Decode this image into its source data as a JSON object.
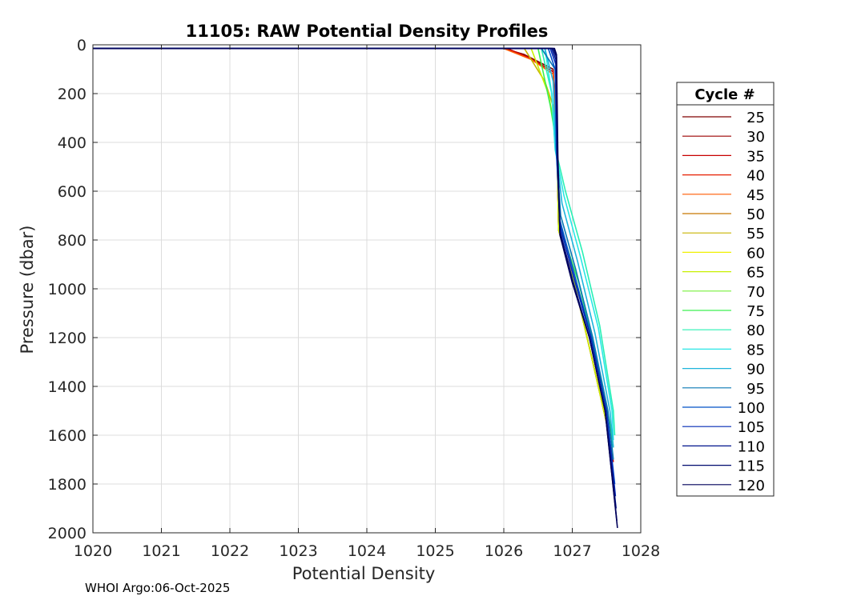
{
  "footer": "WHOI Argo:06-Oct-2025",
  "chart_data": {
    "type": "line",
    "title": "11105: RAW Potential Density Profiles",
    "xlabel": "Potential Density",
    "ylabel": "Pressure (dbar)",
    "xlim": [
      1020,
      1028
    ],
    "ylim": [
      0,
      2000
    ],
    "y_reversed": true,
    "grid": true,
    "xticks": [
      "1020",
      "1021",
      "1022",
      "1023",
      "1024",
      "1025",
      "1026",
      "1027",
      "1028"
    ],
    "yticks": [
      "0",
      "200",
      "400",
      "600",
      "800",
      "1000",
      "1200",
      "1400",
      "1600",
      "1800",
      "2000"
    ],
    "legend": {
      "title": "Cycle #",
      "placement": "outside-right",
      "entries": [
        {
          "label": "25",
          "color": "#800000"
        },
        {
          "label": "30",
          "color": "#9b0000"
        },
        {
          "label": "35",
          "color": "#c80000"
        },
        {
          "label": "40",
          "color": "#e61e00"
        },
        {
          "label": "45",
          "color": "#ff5a00"
        },
        {
          "label": "50",
          "color": "#c87800"
        },
        {
          "label": "55",
          "color": "#c8b400"
        },
        {
          "label": "60",
          "color": "#f0f000"
        },
        {
          "label": "65",
          "color": "#c8f000"
        },
        {
          "label": "70",
          "color": "#78f03c"
        },
        {
          "label": "75",
          "color": "#3cf050"
        },
        {
          "label": "80",
          "color": "#28f0b4"
        },
        {
          "label": "85",
          "color": "#28e6e6"
        },
        {
          "label": "90",
          "color": "#1eb4dc"
        },
        {
          "label": "95",
          "color": "#0a78b4"
        },
        {
          "label": "100",
          "color": "#0050c8"
        },
        {
          "label": "105",
          "color": "#0028b4"
        },
        {
          "label": "110",
          "color": "#00148c"
        },
        {
          "label": "115",
          "color": "#000a6e"
        },
        {
          "label": "120",
          "color": "#00005a"
        }
      ]
    },
    "series": [
      {
        "cycle": 25,
        "color": "#800000",
        "x": [
          1020.0,
          1026.0,
          1026.3,
          1026.72,
          1026.78,
          1026.8,
          1027.05,
          1027.3,
          1027.5,
          1027.58
        ],
        "y": [
          15,
          15,
          40,
          100,
          450,
          750,
          1000,
          1300,
          1550,
          1700
        ]
      },
      {
        "cycle": 35,
        "color": "#c80000",
        "x": [
          1020.0,
          1026.05,
          1026.35,
          1026.72,
          1026.78,
          1026.8,
          1027.05,
          1027.3,
          1027.5,
          1027.6
        ],
        "y": [
          15,
          15,
          50,
          110,
          450,
          760,
          1000,
          1300,
          1550,
          1710
        ]
      },
      {
        "cycle": 45,
        "color": "#ff5a00",
        "x": [
          1020.0,
          1026.0,
          1026.4,
          1026.72,
          1026.78,
          1026.8,
          1027.05,
          1027.3,
          1027.5,
          1027.58
        ],
        "y": [
          15,
          15,
          60,
          120,
          450,
          760,
          1000,
          1300,
          1550,
          1700
        ]
      },
      {
        "cycle": 55,
        "color": "#c8b400",
        "x": [
          1020.0,
          1026.3,
          1026.6,
          1026.72,
          1026.78,
          1026.8,
          1027.05,
          1027.3,
          1027.5,
          1027.57
        ],
        "y": [
          15,
          15,
          150,
          250,
          450,
          760,
          1000,
          1300,
          1550,
          1680
        ]
      },
      {
        "cycle": 65,
        "color": "#c8f000",
        "x": [
          1020.0,
          1026.4,
          1026.65,
          1026.72,
          1026.78,
          1026.8,
          1027.05,
          1027.3,
          1027.5,
          1027.57
        ],
        "y": [
          15,
          15,
          200,
          300,
          450,
          760,
          1000,
          1300,
          1550,
          1680
        ]
      },
      {
        "cycle": 75,
        "color": "#3cf050",
        "x": [
          1020.0,
          1026.5,
          1026.68,
          1026.72,
          1026.78,
          1026.82,
          1027.1,
          1027.35,
          1027.55,
          1027.6
        ],
        "y": [
          15,
          15,
          250,
          320,
          450,
          740,
          980,
          1280,
          1550,
          1650
        ]
      },
      {
        "cycle": 80,
        "color": "#28f0b4",
        "x": [
          1020.0,
          1026.55,
          1026.7,
          1026.75,
          1026.9,
          1027.15,
          1027.4,
          1027.6,
          1027.62
        ],
        "y": [
          15,
          15,
          200,
          420,
          600,
          850,
          1150,
          1500,
          1600
        ]
      },
      {
        "cycle": 85,
        "color": "#28e6e6",
        "x": [
          1020.0,
          1026.6,
          1026.7,
          1026.75,
          1026.88,
          1027.12,
          1027.38,
          1027.58,
          1027.6
        ],
        "y": [
          15,
          15,
          200,
          430,
          620,
          870,
          1160,
          1500,
          1620
        ]
      },
      {
        "cycle": 90,
        "color": "#1eb4dc",
        "x": [
          1020.0,
          1026.6,
          1026.72,
          1026.76,
          1026.85,
          1027.08,
          1027.33,
          1027.55,
          1027.6
        ],
        "y": [
          15,
          15,
          150,
          430,
          650,
          890,
          1180,
          1500,
          1650
        ]
      },
      {
        "cycle": 95,
        "color": "#0a78b4",
        "x": [
          1020.0,
          1026.55,
          1026.75,
          1026.77,
          1026.83,
          1027.05,
          1027.3,
          1027.52,
          1027.6
        ],
        "y": [
          15,
          15,
          100,
          450,
          700,
          920,
          1200,
          1500,
          1700
        ]
      },
      {
        "cycle": 100,
        "color": "#0050c8",
        "x": [
          1020.0,
          1026.65,
          1026.75,
          1026.77,
          1026.82,
          1027.03,
          1027.28,
          1027.5,
          1027.62
        ],
        "y": [
          15,
          15,
          100,
          450,
          720,
          940,
          1200,
          1500,
          1800
        ]
      },
      {
        "cycle": 105,
        "color": "#0028b4",
        "x": [
          1020.0,
          1026.68,
          1026.76,
          1026.78,
          1026.82,
          1027.02,
          1027.27,
          1027.5,
          1027.63
        ],
        "y": [
          15,
          15,
          80,
          450,
          740,
          950,
          1200,
          1500,
          1850
        ]
      },
      {
        "cycle": 110,
        "color": "#00148c",
        "x": [
          1020.0,
          1026.7,
          1026.76,
          1026.78,
          1026.82,
          1027.0,
          1027.25,
          1027.48,
          1027.64
        ],
        "y": [
          15,
          15,
          60,
          450,
          760,
          960,
          1200,
          1500,
          1900
        ]
      },
      {
        "cycle": 115,
        "color": "#000a6e",
        "x": [
          1020.0,
          1026.72,
          1026.77,
          1026.78,
          1026.82,
          1027.0,
          1027.25,
          1027.48,
          1027.65
        ],
        "y": [
          15,
          15,
          50,
          450,
          770,
          970,
          1200,
          1500,
          1950
        ]
      },
      {
        "cycle": 120,
        "color": "#00005a",
        "x": [
          1020.0,
          1026.74,
          1026.77,
          1026.79,
          1026.82,
          1027.0,
          1027.25,
          1027.48,
          1027.66
        ],
        "y": [
          15,
          15,
          40,
          450,
          780,
          975,
          1200,
          1500,
          1980
        ]
      }
    ]
  }
}
